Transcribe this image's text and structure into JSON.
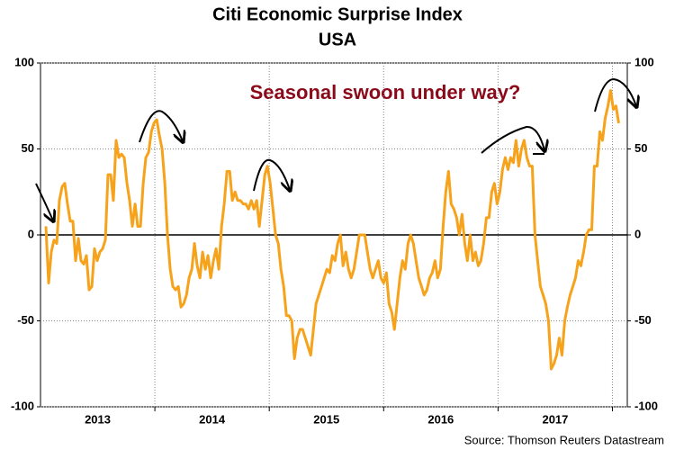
{
  "chart_data": {
    "type": "line",
    "title": "Citi Economic Surprise Index",
    "subtitle": "USA",
    "annotation": "Seasonal swoon under way?",
    "source": "Source: Thomson Reuters Datastream",
    "color": "#f7a21b",
    "annotation_color": "#8b0a1a",
    "xlim": [
      2013,
      2018.13
    ],
    "xticks": [
      {
        "value": 2013.5,
        "label": "2013"
      },
      {
        "value": 2014.5,
        "label": "2014"
      },
      {
        "value": 2015.5,
        "label": "2015"
      },
      {
        "value": 2016.5,
        "label": "2016"
      },
      {
        "value": 2017.5,
        "label": "2017"
      }
    ],
    "xgrid": [
      2014,
      2015,
      2016,
      2017,
      2018
    ],
    "ylim": [
      -100,
      100
    ],
    "yticks": [
      100,
      50,
      0,
      -50,
      -100
    ],
    "grid": true,
    "x": [
      2013.047,
      2013.071,
      2013.094,
      2013.118,
      2013.142,
      2013.165,
      2013.189,
      2013.212,
      2013.236,
      2013.26,
      2013.283,
      2013.307,
      2013.331,
      2013.354,
      2013.378,
      2013.401,
      2013.425,
      2013.449,
      2013.472,
      2013.496,
      2013.519,
      2013.543,
      2013.567,
      2013.59,
      2013.614,
      2013.637,
      2013.661,
      2013.685,
      2013.708,
      2013.732,
      2013.756,
      2013.779,
      2013.803,
      2013.827,
      2013.85,
      2013.874,
      2013.898,
      2013.921,
      2013.945,
      2013.969,
      2013.992,
      2014.016,
      2014.039,
      2014.063,
      2014.087,
      2014.11,
      2014.134,
      2014.157,
      2014.181,
      2014.205,
      2014.228,
      2014.252,
      2014.276,
      2014.299,
      2014.323,
      2014.346,
      2014.37,
      2014.394,
      2014.417,
      2014.441,
      2014.464,
      2014.488,
      2014.512,
      2014.535,
      2014.559,
      2014.583,
      2014.606,
      2014.63,
      2014.654,
      2014.677,
      2014.701,
      2014.724,
      2014.748,
      2014.772,
      2014.795,
      2014.819,
      2014.843,
      2014.866,
      2014.89,
      2014.913,
      2014.937,
      2014.961,
      2014.984,
      2015.008,
      2015.032,
      2015.055,
      2015.079,
      2015.102,
      2015.126,
      2015.15,
      2015.173,
      2015.197,
      2015.22,
      2015.244,
      2015.268,
      2015.291,
      2015.315,
      2015.339,
      2015.362,
      2015.386,
      2015.409,
      2015.433,
      2015.457,
      2015.48,
      2015.504,
      2015.528,
      2015.551,
      2015.575,
      2015.598,
      2015.622,
      2015.645,
      2015.669,
      2015.693,
      2015.716,
      2015.74,
      2015.764,
      2015.787,
      2015.811,
      2015.835,
      2015.858,
      2015.882,
      2015.905,
      2015.929,
      2015.953,
      2015.976,
      2016.0,
      2016.024,
      2016.047,
      2016.071,
      2016.094,
      2016.118,
      2016.142,
      2016.165,
      2016.189,
      2016.213,
      2016.236,
      2016.26,
      2016.283,
      2016.307,
      2016.331,
      2016.354,
      2016.378,
      2016.402,
      2016.425,
      2016.449,
      2016.472,
      2016.496,
      2016.52,
      2016.543,
      2016.567,
      2016.59,
      2016.614,
      2016.638,
      2016.661,
      2016.685,
      2016.709,
      2016.732,
      2016.756,
      2016.78,
      2016.803,
      2016.827,
      2016.85,
      2016.874,
      2016.898,
      2016.921,
      2016.945,
      2016.968,
      2016.992,
      2017.016,
      2017.039,
      2017.063,
      2017.087,
      2017.11,
      2017.134,
      2017.157,
      2017.181,
      2017.205,
      2017.228,
      2017.252,
      2017.276,
      2017.299,
      2017.323,
      2017.346,
      2017.37,
      2017.394,
      2017.417,
      2017.441,
      2017.465,
      2017.488,
      2017.512,
      2017.535,
      2017.559,
      2017.583,
      2017.606,
      2017.63,
      2017.654,
      2017.677,
      2017.701,
      2017.724,
      2017.748,
      2017.771,
      2017.795,
      2017.819,
      2017.842,
      2017.866,
      2017.89,
      2017.913,
      2017.937,
      2017.961,
      2017.984,
      2018.008,
      2018.031,
      2018.055
    ],
    "values": [
      5,
      -28,
      -10,
      -3,
      -5,
      20,
      28,
      30,
      18,
      8,
      8,
      -15,
      -2,
      -15,
      -17,
      -12,
      -32,
      -30,
      -8,
      -15,
      -10,
      -8,
      -3,
      35,
      35,
      20,
      55,
      45,
      47,
      45,
      30,
      20,
      5,
      18,
      5,
      5,
      30,
      45,
      48,
      60,
      65,
      67,
      58,
      50,
      30,
      0,
      -20,
      -30,
      -32,
      -30,
      -42,
      -40,
      -35,
      -25,
      -20,
      -5,
      -18,
      -25,
      -10,
      -20,
      -12,
      -25,
      -15,
      -8,
      -20,
      5,
      18,
      37,
      37,
      20,
      25,
      20,
      20,
      18,
      18,
      15,
      20,
      15,
      20,
      5,
      20,
      35,
      40,
      30,
      15,
      0,
      -5,
      -20,
      -30,
      -47,
      -47,
      -50,
      -72,
      -60,
      -55,
      -55,
      -60,
      -65,
      -70,
      -55,
      -40,
      -35,
      -30,
      -25,
      -20,
      -22,
      -12,
      -15,
      -5,
      0,
      -18,
      -10,
      -20,
      -25,
      -20,
      -10,
      0,
      0,
      0,
      -10,
      -20,
      -25,
      -20,
      -15,
      -25,
      -28,
      -22,
      -40,
      -45,
      -55,
      -40,
      -25,
      -15,
      -20,
      -5,
      0,
      -5,
      -15,
      -25,
      -30,
      -35,
      -32,
      -25,
      -22,
      -15,
      -25,
      -20,
      5,
      25,
      37,
      18,
      15,
      10,
      0,
      12,
      -5,
      -15,
      0,
      -15,
      -10,
      -18,
      -15,
      -5,
      10,
      10,
      25,
      30,
      18,
      25,
      38,
      45,
      38,
      45,
      42,
      55,
      40,
      50,
      55,
      45,
      40,
      40,
      0,
      -15,
      -30,
      -35,
      -40,
      -50,
      -78,
      -75,
      -70,
      -60,
      -70,
      -50,
      -42,
      -35,
      -30,
      -25,
      -15,
      -18,
      -10,
      0,
      3,
      3,
      40,
      40,
      60,
      55,
      68,
      75,
      84,
      73,
      75,
      65
    ]
  }
}
